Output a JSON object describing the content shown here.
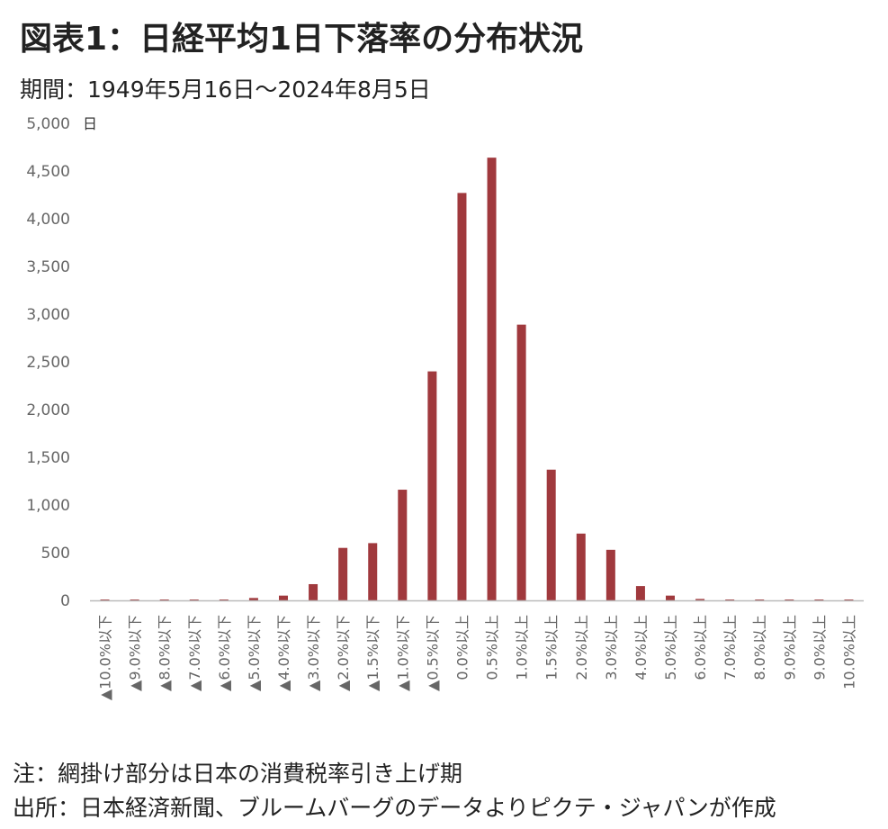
{
  "title": "図表1：日経平均1日下落率の分布状況",
  "subtitle": "期間：1949年5月16日～2024年8月5日",
  "notes": [
    "注：網掛け部分は日本の消費税率引き上げ期",
    "出所：日本経済新聞、ブルームバーグのデータよりピクテ・ジャパンが作成"
  ],
  "colors": {
    "bar": "#a0393d",
    "axis": "#bbbbbb",
    "text": "#666666"
  },
  "chart_data": {
    "type": "bar",
    "ylabel": "日",
    "ylim": [
      0,
      5000
    ],
    "yticks": [
      0,
      500,
      1000,
      1500,
      2000,
      2500,
      3000,
      3500,
      4000,
      4500,
      5000
    ],
    "ytick_labels": [
      "0",
      "500",
      "1,000",
      "1,500",
      "2,000",
      "2,500",
      "3,000",
      "3,500",
      "4,000",
      "4,500",
      "5,000"
    ],
    "grid": false,
    "legend": "none",
    "categories": [
      "▲10.0%以下",
      "▲9.0%以下",
      "▲8.0%以下",
      "▲7.0%以下",
      "▲6.0%以下",
      "▲5.0%以下",
      "▲4.0%以下",
      "▲3.0%以下",
      "▲2.0%以下",
      "▲1.5%以下",
      "▲1.0%以下",
      "▲0.5%以下",
      "0.0%以上",
      "0.5%以上",
      "1.0%以上",
      "1.5%以上",
      "2.0%以上",
      "3.0%以上",
      "4.0%以上",
      "5.0%以上",
      "6.0%以上",
      "7.0%以上",
      "8.0%以上",
      "9.0%以上",
      "9.0%以上",
      "10.0%以上"
    ],
    "values": [
      1,
      1,
      1,
      1,
      3,
      25,
      50,
      170,
      550,
      600,
      1160,
      2400,
      4270,
      4640,
      2890,
      1370,
      700,
      530,
      150,
      50,
      15,
      3,
      2,
      1,
      1,
      1
    ]
  }
}
